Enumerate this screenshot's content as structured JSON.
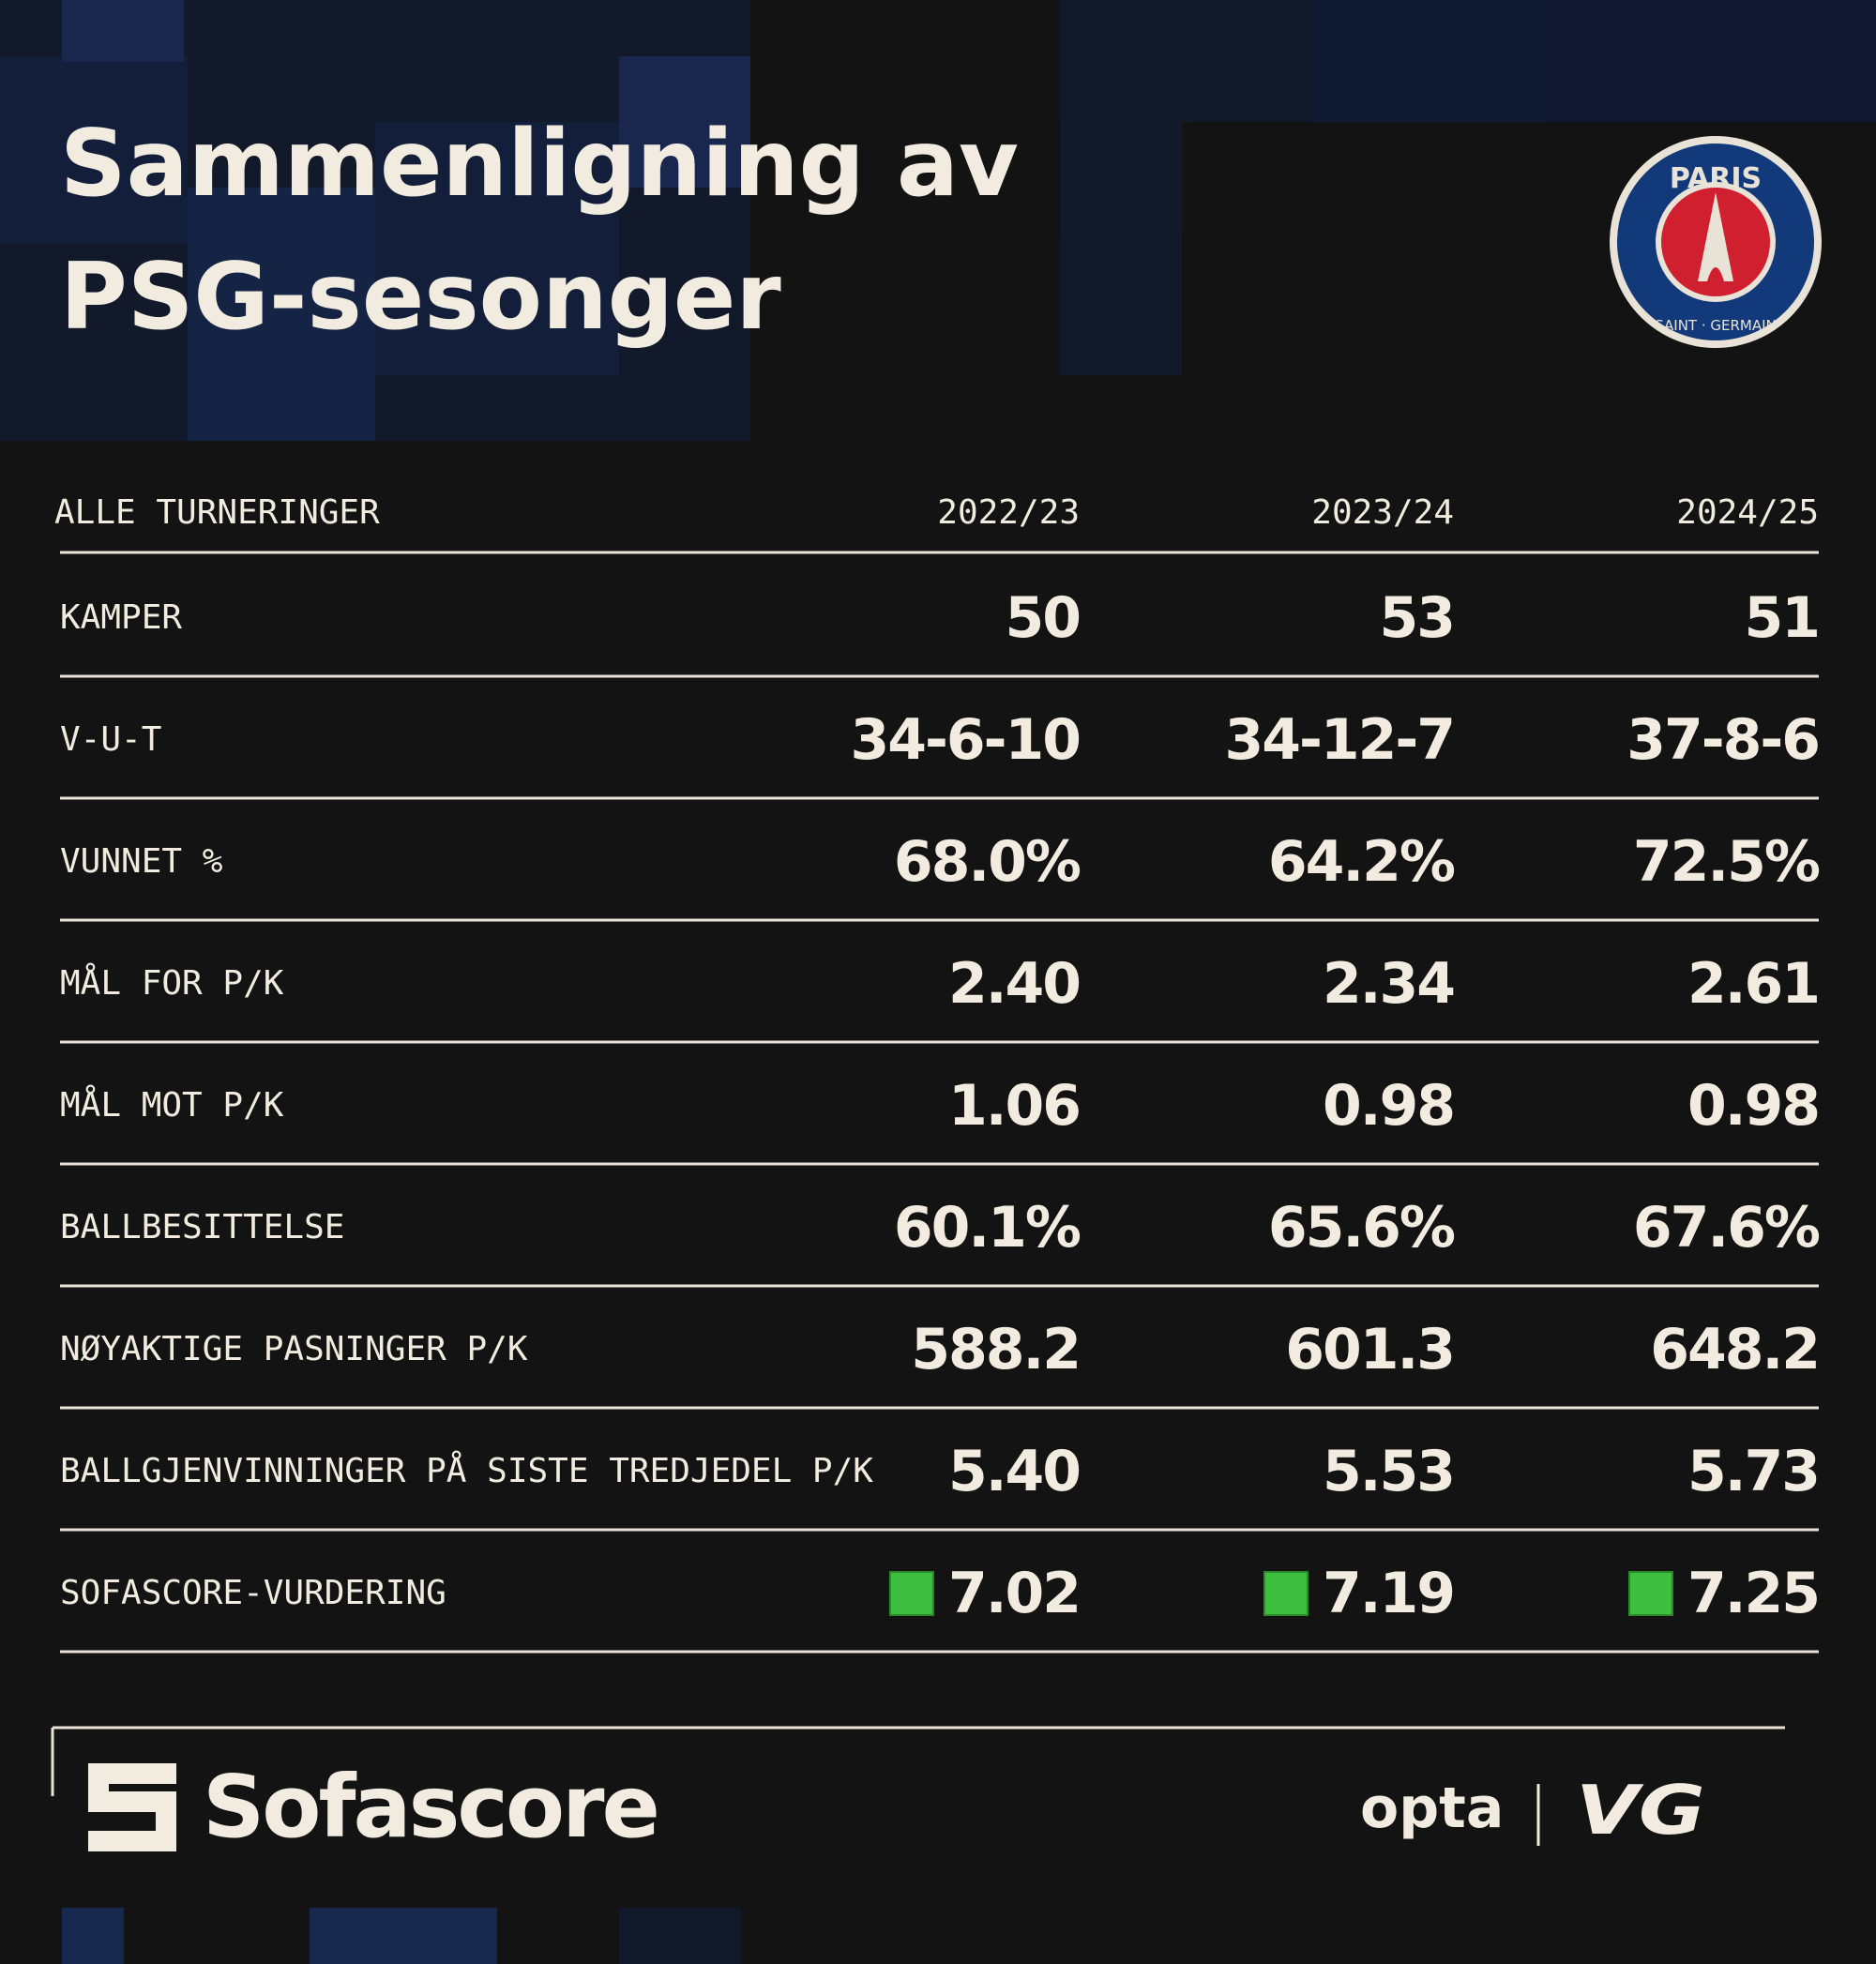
{
  "header": {
    "title_lines": [
      "Sammenligning av",
      "PSG-sesonger"
    ],
    "logo": {
      "top": "PARIS",
      "bottom": "SAINT · GERMAIN"
    }
  },
  "table": {
    "columns": [
      "ALLE TURNERINGER",
      "2022/23",
      "2023/24",
      "2024/25"
    ],
    "rows": [
      [
        "KAMPER",
        "50",
        "53",
        "51"
      ],
      [
        "V-U-T",
        "34-6-10",
        "34-12-7",
        "37-8-6"
      ],
      [
        "VUNNET %",
        "68.0%",
        "64.2%",
        "72.5%"
      ],
      [
        "MÅL FOR P/K",
        "2.40",
        "2.34",
        "2.61"
      ],
      [
        "MÅL MOT P/K",
        "1.06",
        "0.98",
        "0.98"
      ],
      [
        "BALLBESITTELSE",
        "60.1%",
        "65.6%",
        "67.6%"
      ],
      [
        "NØYAKTIGE PASNINGER P/K",
        "588.2",
        "601.3",
        "648.2"
      ],
      [
        "BALLGJENVINNINGER PÅ SISTE TREDJEDEL P/K",
        "5.40",
        "5.53",
        "5.73"
      ],
      [
        "SOFASCORE-VURDERING",
        "7.02",
        "7.19",
        "7.25"
      ]
    ]
  },
  "footer": {
    "brand": "Sofascore",
    "partners": [
      "opta",
      "VG"
    ]
  }
}
